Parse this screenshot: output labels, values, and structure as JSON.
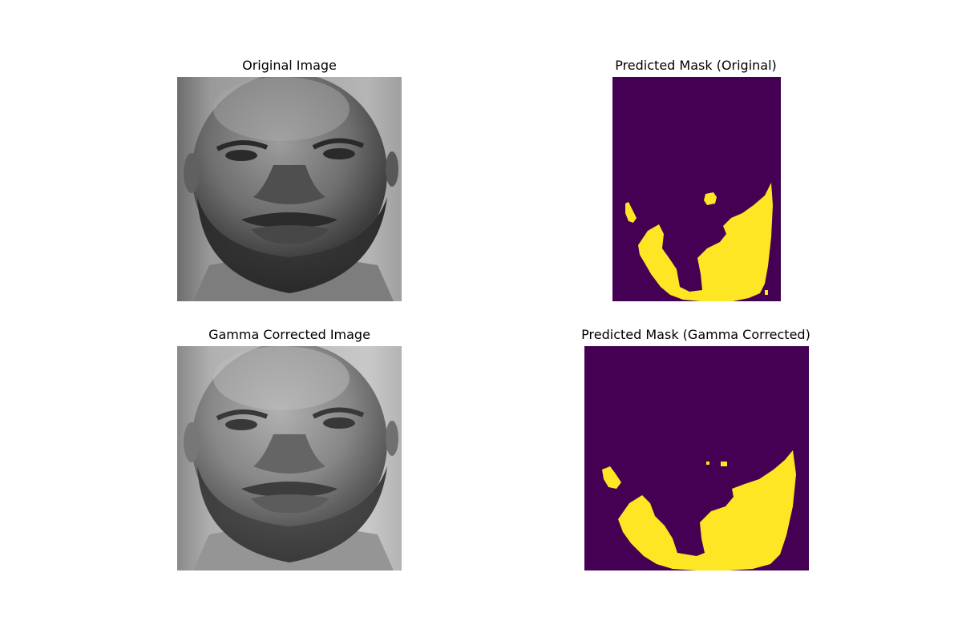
{
  "figure": {
    "background": "#ffffff",
    "panels": [
      {
        "title": "Original Image",
        "kind": "grayscale-photo",
        "subject": "face"
      },
      {
        "title": "Predicted Mask (Original)",
        "kind": "binary-mask",
        "colormap": "viridis"
      },
      {
        "title": "Gamma Corrected Image",
        "kind": "grayscale-photo",
        "subject": "face"
      },
      {
        "title": "Predicted Mask (Gamma Corrected)",
        "kind": "binary-mask",
        "colormap": "viridis"
      }
    ]
  },
  "colors": {
    "mask_background": "#440154",
    "mask_foreground": "#fde725"
  }
}
